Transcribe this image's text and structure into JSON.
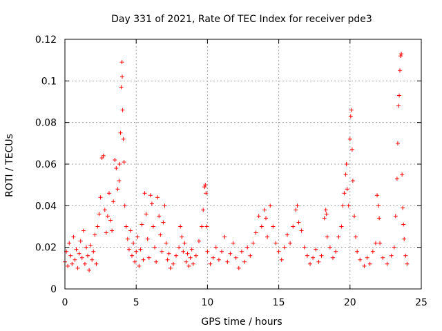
{
  "chart_data": {
    "type": "scatter",
    "title": "Day 331 of 2021, Rate Of TEC Index for receiver pde3",
    "xlabel": "GPS time / hours",
    "ylabel": "ROTI / TECUs",
    "xlim": [
      0,
      25
    ],
    "ylim": [
      0,
      0.12
    ],
    "xticks": [
      0,
      5,
      10,
      15,
      20,
      25
    ],
    "xtick_labels": [
      "0",
      "5",
      "10",
      "15",
      "20",
      "25"
    ],
    "yticks": [
      0,
      0.02,
      0.04,
      0.06,
      0.08,
      0.1,
      0.12
    ],
    "ytick_labels": [
      "0",
      "0.02",
      "0.04",
      "0.06",
      "0.08",
      "0.1",
      "0.12"
    ],
    "grid": true,
    "marker": "plus",
    "color": "#ff0000",
    "series": [
      {
        "points": [
          [
            0.0,
            0.013
          ],
          [
            0.1,
            0.018
          ],
          [
            0.2,
            0.011
          ],
          [
            0.3,
            0.022
          ],
          [
            0.4,
            0.016
          ],
          [
            0.5,
            0.012
          ],
          [
            0.6,
            0.025
          ],
          [
            0.7,
            0.014
          ],
          [
            0.8,
            0.019
          ],
          [
            0.9,
            0.01
          ],
          [
            1.0,
            0.017
          ],
          [
            1.1,
            0.023
          ],
          [
            1.2,
            0.015
          ],
          [
            1.3,
            0.028
          ],
          [
            1.4,
            0.012
          ],
          [
            1.5,
            0.02
          ],
          [
            1.6,
            0.016
          ],
          [
            1.7,
            0.009
          ],
          [
            1.8,
            0.021
          ],
          [
            1.9,
            0.014
          ],
          [
            2.0,
            0.018
          ],
          [
            2.1,
            0.026
          ],
          [
            2.2,
            0.012
          ],
          [
            2.3,
            0.03
          ],
          [
            2.4,
            0.036
          ],
          [
            2.5,
            0.044
          ],
          [
            2.6,
            0.063
          ],
          [
            2.7,
            0.064
          ],
          [
            2.8,
            0.038
          ],
          [
            2.9,
            0.027
          ],
          [
            3.0,
            0.035
          ],
          [
            3.1,
            0.046
          ],
          [
            3.2,
            0.033
          ],
          [
            3.3,
            0.028
          ],
          [
            3.4,
            0.042
          ],
          [
            3.5,
            0.062
          ],
          [
            3.6,
            0.058
          ],
          [
            3.7,
            0.048
          ],
          [
            3.8,
            0.052
          ],
          [
            3.85,
            0.06
          ],
          [
            3.9,
            0.075
          ],
          [
            3.95,
            0.097
          ],
          [
            4.0,
            0.109
          ],
          [
            4.02,
            0.102
          ],
          [
            4.05,
            0.086
          ],
          [
            4.1,
            0.072
          ],
          [
            4.15,
            0.061
          ],
          [
            4.2,
            0.04
          ],
          [
            4.3,
            0.03
          ],
          [
            4.4,
            0.024
          ],
          [
            4.5,
            0.019
          ],
          [
            4.6,
            0.028
          ],
          [
            4.7,
            0.016
          ],
          [
            4.8,
            0.022
          ],
          [
            4.9,
            0.013
          ],
          [
            5.0,
            0.018
          ],
          [
            5.1,
            0.025
          ],
          [
            5.2,
            0.011
          ],
          [
            5.3,
            0.019
          ],
          [
            5.4,
            0.031
          ],
          [
            5.5,
            0.014
          ],
          [
            5.6,
            0.046
          ],
          [
            5.7,
            0.036
          ],
          [
            5.8,
            0.024
          ],
          [
            5.9,
            0.015
          ],
          [
            6.0,
            0.045
          ],
          [
            6.1,
            0.041
          ],
          [
            6.2,
            0.03
          ],
          [
            6.3,
            0.02
          ],
          [
            6.4,
            0.013
          ],
          [
            6.5,
            0.044
          ],
          [
            6.6,
            0.035
          ],
          [
            6.7,
            0.026
          ],
          [
            6.8,
            0.018
          ],
          [
            6.9,
            0.032
          ],
          [
            7.0,
            0.04
          ],
          [
            7.1,
            0.022
          ],
          [
            7.2,
            0.014
          ],
          [
            7.3,
            0.017
          ],
          [
            7.4,
            0.01
          ],
          [
            7.6,
            0.012
          ],
          [
            7.8,
            0.016
          ],
          [
            8.0,
            0.02
          ],
          [
            8.1,
            0.03
          ],
          [
            8.2,
            0.025
          ],
          [
            8.3,
            0.018
          ],
          [
            8.4,
            0.022
          ],
          [
            8.5,
            0.013
          ],
          [
            8.6,
            0.017
          ],
          [
            8.7,
            0.011
          ],
          [
            8.8,
            0.015
          ],
          [
            8.9,
            0.019
          ],
          [
            9.0,
            0.012
          ],
          [
            9.2,
            0.016
          ],
          [
            9.4,
            0.023
          ],
          [
            9.6,
            0.03
          ],
          [
            9.7,
            0.038
          ],
          [
            9.8,
            0.049
          ],
          [
            9.85,
            0.05
          ],
          [
            9.9,
            0.046
          ],
          [
            9.95,
            0.03
          ],
          [
            10.0,
            0.018
          ],
          [
            10.2,
            0.012
          ],
          [
            10.4,
            0.015
          ],
          [
            10.6,
            0.02
          ],
          [
            10.8,
            0.014
          ],
          [
            11.0,
            0.018
          ],
          [
            11.2,
            0.025
          ],
          [
            11.4,
            0.013
          ],
          [
            11.6,
            0.017
          ],
          [
            11.8,
            0.022
          ],
          [
            12.0,
            0.015
          ],
          [
            12.2,
            0.01
          ],
          [
            12.4,
            0.018
          ],
          [
            12.6,
            0.013
          ],
          [
            12.8,
            0.02
          ],
          [
            13.0,
            0.016
          ],
          [
            13.2,
            0.022
          ],
          [
            13.4,
            0.027
          ],
          [
            13.6,
            0.035
          ],
          [
            13.8,
            0.03
          ],
          [
            14.0,
            0.038
          ],
          [
            14.1,
            0.034
          ],
          [
            14.2,
            0.025
          ],
          [
            14.4,
            0.04
          ],
          [
            14.6,
            0.03
          ],
          [
            14.8,
            0.022
          ],
          [
            15.0,
            0.018
          ],
          [
            15.2,
            0.014
          ],
          [
            15.4,
            0.02
          ],
          [
            15.6,
            0.026
          ],
          [
            15.8,
            0.022
          ],
          [
            16.0,
            0.03
          ],
          [
            16.2,
            0.038
          ],
          [
            16.3,
            0.04
          ],
          [
            16.4,
            0.032
          ],
          [
            16.6,
            0.028
          ],
          [
            16.8,
            0.02
          ],
          [
            17.0,
            0.016
          ],
          [
            17.2,
            0.012
          ],
          [
            17.4,
            0.015
          ],
          [
            17.6,
            0.019
          ],
          [
            17.8,
            0.013
          ],
          [
            18.0,
            0.016
          ],
          [
            18.2,
            0.034
          ],
          [
            18.3,
            0.038
          ],
          [
            18.35,
            0.036
          ],
          [
            18.4,
            0.025
          ],
          [
            18.6,
            0.02
          ],
          [
            18.8,
            0.015
          ],
          [
            19.0,
            0.018
          ],
          [
            19.2,
            0.025
          ],
          [
            19.4,
            0.03
          ],
          [
            19.5,
            0.04
          ],
          [
            19.6,
            0.046
          ],
          [
            19.7,
            0.055
          ],
          [
            19.75,
            0.06
          ],
          [
            19.8,
            0.048
          ],
          [
            19.9,
            0.04
          ],
          [
            20.0,
            0.072
          ],
          [
            20.05,
            0.083
          ],
          [
            20.1,
            0.086
          ],
          [
            20.15,
            0.067
          ],
          [
            20.2,
            0.052
          ],
          [
            20.3,
            0.035
          ],
          [
            20.4,
            0.025
          ],
          [
            20.5,
            0.018
          ],
          [
            20.7,
            0.014
          ],
          [
            21.0,
            0.011
          ],
          [
            21.2,
            0.015
          ],
          [
            21.4,
            0.012
          ],
          [
            21.6,
            0.018
          ],
          [
            21.8,
            0.022
          ],
          [
            21.9,
            0.045
          ],
          [
            22.0,
            0.04
          ],
          [
            22.05,
            0.034
          ],
          [
            22.1,
            0.022
          ],
          [
            22.3,
            0.015
          ],
          [
            22.6,
            0.012
          ],
          [
            22.9,
            0.016
          ],
          [
            23.1,
            0.02
          ],
          [
            23.2,
            0.035
          ],
          [
            23.3,
            0.053
          ],
          [
            23.35,
            0.07
          ],
          [
            23.4,
            0.088
          ],
          [
            23.45,
            0.093
          ],
          [
            23.5,
            0.105
          ],
          [
            23.55,
            0.112
          ],
          [
            23.6,
            0.113
          ],
          [
            23.65,
            0.055
          ],
          [
            23.7,
            0.039
          ],
          [
            23.75,
            0.031
          ],
          [
            23.8,
            0.024
          ],
          [
            23.9,
            0.016
          ],
          [
            24.0,
            0.012
          ]
        ]
      }
    ]
  }
}
